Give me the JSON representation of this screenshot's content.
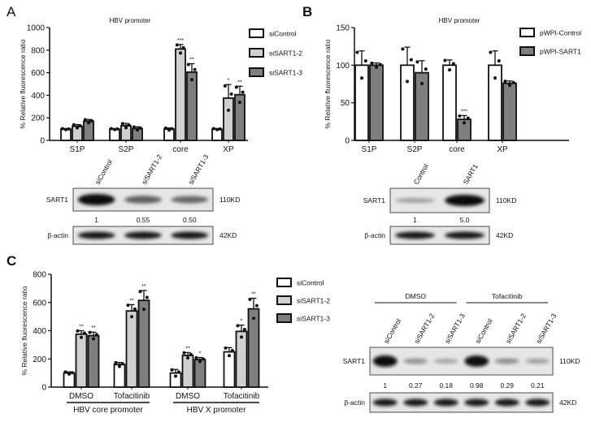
{
  "panels": {
    "a": "A",
    "b": "B",
    "c": "C"
  },
  "chart_data": [
    {
      "type": "bar",
      "title": "HBV  promoter",
      "ylabel": "% Relative fluorescence ratio",
      "ylim": [
        0,
        1000
      ],
      "yticks": [
        "0",
        "200",
        "400",
        "600",
        "800",
        "1000"
      ],
      "categories": [
        "S1P",
        "S2P",
        "core",
        "XP"
      ],
      "legend_position": "right",
      "series": [
        {
          "name": "siControl",
          "color": "#ffffff",
          "values": [
            100,
            100,
            100,
            100
          ],
          "sd": [
            5,
            5,
            10,
            5
          ],
          "sig": [
            "",
            "",
            "",
            ""
          ]
        },
        {
          "name": "siSART1-2",
          "color": "#d0d0d0",
          "values": [
            125,
            130,
            810,
            375
          ],
          "sd": [
            15,
            20,
            40,
            120
          ],
          "sig": [
            "",
            "",
            "***",
            "*"
          ]
        },
        {
          "name": "siSART1-3",
          "color": "#7f7f7f",
          "values": [
            170,
            105,
            605,
            405
          ],
          "sd": [
            15,
            15,
            75,
            75
          ],
          "sig": [
            "",
            "",
            "**",
            "**"
          ]
        }
      ]
    },
    {
      "type": "bar",
      "title": "HBV  promoter",
      "ylabel": "% Relative fluorescence ratio",
      "ylim": [
        0,
        150
      ],
      "yticks": [
        "0",
        "50",
        "100",
        "150"
      ],
      "categories": [
        "S1P",
        "S2P",
        "core",
        "XP"
      ],
      "legend_position": "right",
      "series": [
        {
          "name": "pWPI-Control",
          "color": "#ffffff",
          "values": [
            100,
            100,
            100,
            100
          ],
          "sd": [
            19,
            24,
            7,
            19
          ],
          "sig": [
            "",
            "",
            "",
            ""
          ]
        },
        {
          "name": "pWPI-SART1",
          "color": "#7f7f7f",
          "values": [
            100,
            90,
            28,
            76
          ],
          "sd": [
            3,
            16,
            5,
            3
          ],
          "sig": [
            "",
            "",
            "***",
            ""
          ]
        }
      ]
    },
    {
      "type": "bar",
      "title": "",
      "ylabel": "% Relative fluorescence ratio",
      "ylim": [
        0,
        800
      ],
      "yticks": [
        "0",
        "200",
        "400",
        "600",
        "800"
      ],
      "categories": [
        "DMSO",
        "Tofacitinib",
        "DMSO",
        "Tofacitinib"
      ],
      "category_groups": [
        {
          "label": "HBV core promoter",
          "members": [
            0,
            1
          ]
        },
        {
          "label": "HBV X promoter",
          "members": [
            2,
            3
          ]
        }
      ],
      "legend_position": "right",
      "series": [
        {
          "name": "siControl",
          "color": "#ffffff",
          "values": [
            100,
            160,
            100,
            250
          ],
          "sd": [
            8,
            15,
            25,
            30
          ],
          "sig": [
            "",
            "",
            "",
            ""
          ]
        },
        {
          "name": "siSART1-2",
          "color": "#d0d0d0",
          "values": [
            375,
            540,
            225,
            395
          ],
          "sd": [
            25,
            45,
            20,
            45
          ],
          "sig": [
            "**",
            "**",
            "**",
            "*"
          ]
        },
        {
          "name": "siSART1-3",
          "color": "#7f7f7f",
          "values": [
            365,
            615,
            195,
            555
          ],
          "sd": [
            25,
            70,
            15,
            75
          ],
          "sig": [
            "**",
            "**",
            "*",
            "**"
          ]
        }
      ]
    }
  ],
  "blots": {
    "a": {
      "lanes": [
        "siControl",
        "siSART1-2",
        "siSART1-3"
      ],
      "target": "SART1",
      "target_kd": "110KD",
      "loading": "β-actin",
      "loading_kd": "42KD",
      "quant": [
        "1",
        "0.55",
        "0.50"
      ],
      "intensity": [
        1,
        0.55,
        0.5
      ]
    },
    "b": {
      "lanes": [
        "Control",
        "SART1"
      ],
      "target": "SART1",
      "target_kd": "110KD",
      "loading": "β-actin",
      "loading_kd": "42KD",
      "quant": [
        "1",
        "5.0"
      ],
      "intensity": [
        0.2,
        1
      ]
    },
    "c": {
      "treatments": [
        "DMSO",
        "Tofacitinib"
      ],
      "lanes": [
        "siControl",
        "siSART1-2",
        "siSART1-3",
        "siControl",
        "siSART1-2",
        "siSART1-3"
      ],
      "target": "SART1",
      "target_kd": "110KD",
      "loading": "β-actin",
      "loading_kd": "42KD",
      "quant": [
        "1",
        "0.27",
        "0.18",
        "0.98",
        "0.29",
        "0.21"
      ],
      "intensity": [
        1,
        0.27,
        0.18,
        0.98,
        0.29,
        0.21
      ]
    }
  }
}
